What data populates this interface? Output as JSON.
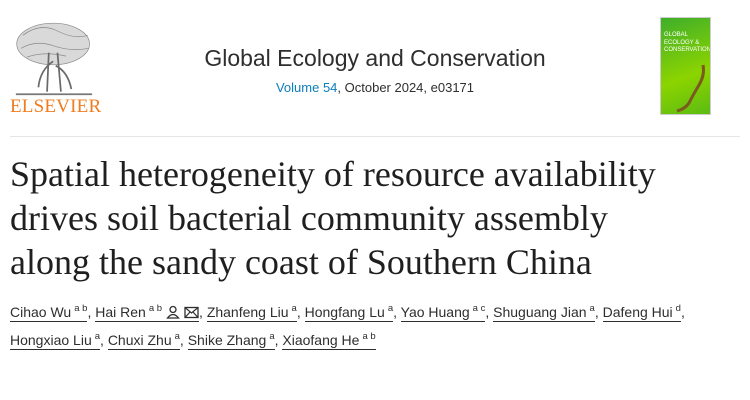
{
  "publisher": {
    "logo_text": "ELSEVIER"
  },
  "journal": {
    "title": "Global Ecology and Conservation",
    "volume_link": "Volume 54",
    "issue_rest": ", October 2024, e03171",
    "cover_text": "GLOBAL ECOLOGY & CONSERVATION"
  },
  "article": {
    "title_lines": [
      "Spatial heterogeneity of resource availability",
      "drives soil bacterial community assembly",
      "along the sandy coast of Southern China"
    ]
  },
  "authors": [
    {
      "name": "Cihao Wu",
      "aff": "a b"
    },
    {
      "name": "Hai Ren",
      "aff": "a b",
      "icons": [
        "person-icon",
        "email-icon"
      ]
    },
    {
      "name": "Zhanfeng Liu",
      "aff": "a"
    },
    {
      "name": "Hongfang Lu",
      "aff": "a"
    },
    {
      "name": "Yao Huang",
      "aff": "a c"
    },
    {
      "name": "Shuguang Jian",
      "aff": "a"
    },
    {
      "name": "Dafeng Hui",
      "aff": "d"
    },
    {
      "name": "Hongxiao Liu",
      "aff": "a"
    },
    {
      "name": "Chuxi Zhu",
      "aff": "a"
    },
    {
      "name": "Shike Zhang",
      "aff": "a"
    },
    {
      "name": "Xiaofang He",
      "aff": "a b"
    }
  ],
  "colors": {
    "link": "#0c7dbb",
    "elsevier_orange": "#f07c1e",
    "cover_green": "#6cc514"
  }
}
